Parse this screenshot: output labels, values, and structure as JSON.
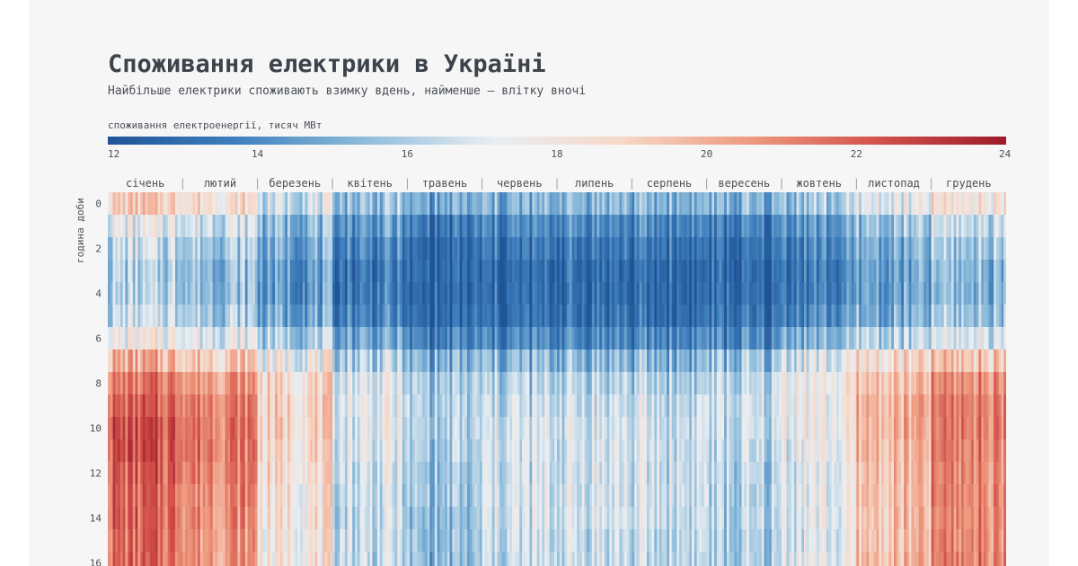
{
  "header": {
    "title": "Споживання електрики в Україні",
    "subtitle": "Найбільше електрики споживають взимку вдень, найменше — влітку вночі"
  },
  "legend": {
    "title": "споживання електроенергії, тисяч МВт",
    "ticks": [
      12,
      14,
      16,
      18,
      20,
      22,
      24
    ],
    "colors": [
      "#1f5496",
      "#3f7fbd",
      "#8dbcdb",
      "#e9eef2",
      "#f6d8c8",
      "#ee9a7f",
      "#d3524b",
      "#9e1a2a"
    ]
  },
  "chart_data": {
    "type": "heatmap",
    "title": "Споживання електрики в Україні",
    "xlabel": "",
    "ylabel": "година доби",
    "value_unit": "тисяч МВт",
    "value_range": [
      12,
      24
    ],
    "x_categories": [
      "січень",
      "лютий",
      "березень",
      "квітень",
      "травень",
      "червень",
      "липень",
      "серпень",
      "вересень",
      "жовтень",
      "листопад",
      "грудень"
    ],
    "y_ticks": [
      0,
      2,
      4,
      6,
      8,
      10,
      12,
      14,
      16
    ],
    "y_visible_range": [
      0,
      16
    ],
    "hours": [
      0,
      1,
      2,
      3,
      4,
      5,
      6,
      7,
      8,
      9,
      10,
      11,
      12,
      13,
      14,
      15,
      16
    ],
    "series": [
      {
        "month": "січень",
        "values": [
          19.0,
          17.2,
          16.4,
          16.0,
          16.0,
          16.4,
          17.6,
          19.8,
          21.2,
          21.8,
          22.2,
          22.2,
          22.0,
          21.8,
          21.8,
          21.6,
          21.6
        ]
      },
      {
        "month": "лютий",
        "values": [
          18.4,
          16.8,
          16.0,
          15.6,
          15.6,
          16.0,
          17.2,
          19.2,
          20.6,
          21.2,
          21.4,
          21.4,
          21.2,
          21.0,
          21.0,
          20.8,
          20.8
        ]
      },
      {
        "month": "березень",
        "values": [
          16.8,
          15.4,
          14.8,
          14.4,
          14.4,
          14.8,
          16.0,
          17.6,
          18.6,
          18.8,
          18.8,
          18.6,
          18.4,
          18.2,
          18.2,
          18.0,
          18.0
        ]
      },
      {
        "month": "квітень",
        "values": [
          15.6,
          14.4,
          13.8,
          13.4,
          13.4,
          13.8,
          14.8,
          16.2,
          17.0,
          17.2,
          17.2,
          17.0,
          16.8,
          16.6,
          16.6,
          16.6,
          16.6
        ]
      },
      {
        "month": "травень",
        "values": [
          14.8,
          13.4,
          12.8,
          12.6,
          12.6,
          12.8,
          13.6,
          15.0,
          15.8,
          16.0,
          16.0,
          15.8,
          15.6,
          15.6,
          15.4,
          15.4,
          15.4
        ]
      },
      {
        "month": "червень",
        "values": [
          15.0,
          13.8,
          13.2,
          12.8,
          12.8,
          13.0,
          13.8,
          15.2,
          16.0,
          16.4,
          16.6,
          16.6,
          16.6,
          16.6,
          16.6,
          16.4,
          16.4
        ]
      },
      {
        "month": "липень",
        "values": [
          15.4,
          14.0,
          13.4,
          13.0,
          13.0,
          13.2,
          14.0,
          15.4,
          16.2,
          16.6,
          16.8,
          16.8,
          16.8,
          16.8,
          16.8,
          16.6,
          16.6
        ]
      },
      {
        "month": "серпень",
        "values": [
          15.2,
          13.8,
          13.2,
          12.8,
          12.8,
          13.0,
          13.8,
          15.2,
          16.0,
          16.4,
          16.6,
          16.6,
          16.6,
          16.6,
          16.6,
          16.4,
          16.4
        ]
      },
      {
        "month": "вересень",
        "values": [
          15.0,
          13.6,
          13.0,
          12.8,
          12.8,
          13.0,
          13.8,
          15.4,
          16.2,
          16.4,
          16.4,
          16.2,
          16.0,
          16.0,
          16.0,
          15.8,
          15.8
        ]
      },
      {
        "month": "жовтень",
        "values": [
          15.8,
          14.4,
          13.8,
          13.6,
          13.6,
          14.0,
          15.2,
          17.0,
          17.6,
          17.6,
          17.6,
          17.4,
          17.2,
          17.2,
          17.2,
          17.0,
          17.2
        ]
      },
      {
        "month": "листопад",
        "values": [
          17.0,
          15.6,
          15.0,
          14.6,
          14.6,
          15.0,
          16.2,
          18.4,
          19.4,
          19.8,
          19.8,
          19.6,
          19.4,
          19.4,
          19.4,
          19.4,
          19.6
        ]
      },
      {
        "month": "грудень",
        "values": [
          18.2,
          16.6,
          15.8,
          15.4,
          15.4,
          15.8,
          17.0,
          19.4,
          20.8,
          21.2,
          21.4,
          21.2,
          21.0,
          21.0,
          21.0,
          21.0,
          21.2
        ]
      }
    ]
  }
}
